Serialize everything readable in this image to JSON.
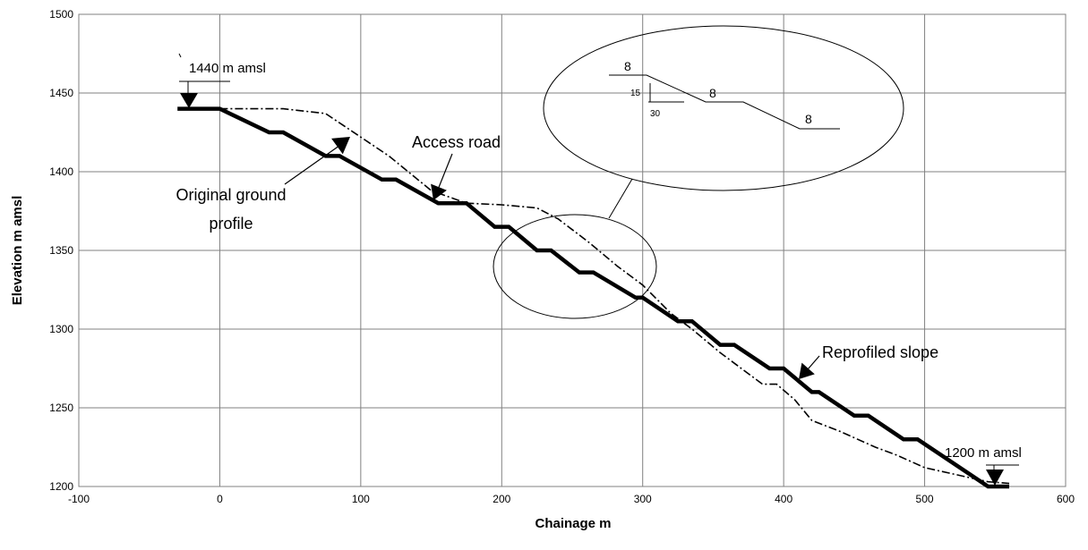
{
  "chart_data": {
    "type": "line",
    "title": "",
    "xlabel": "Chainage m",
    "ylabel": "Elevation m amsl",
    "xlim": [
      -100,
      600
    ],
    "ylim": [
      1200,
      1500
    ],
    "x_ticks": [
      -100,
      0,
      100,
      200,
      300,
      400,
      500,
      600
    ],
    "y_ticks": [
      1200,
      1250,
      1300,
      1350,
      1400,
      1450,
      1500
    ],
    "grid": true,
    "legend": "none",
    "series": [
      {
        "name": "",
        "style": "thick-solid",
        "color": "#000000",
        "points": [
          [
            -30,
            1440
          ],
          [
            0,
            1440
          ],
          [
            35,
            1425
          ],
          [
            45,
            1425
          ],
          [
            75,
            1410
          ],
          [
            85,
            1410
          ],
          [
            115,
            1395
          ],
          [
            125,
            1395
          ],
          [
            155,
            1380
          ],
          [
            175,
            1380
          ],
          [
            195,
            1365
          ],
          [
            205,
            1365
          ],
          [
            225,
            1350
          ],
          [
            235,
            1350
          ],
          [
            255,
            1336
          ],
          [
            265,
            1336
          ],
          [
            295,
            1320
          ],
          [
            300,
            1320
          ],
          [
            325,
            1305
          ],
          [
            335,
            1305
          ],
          [
            355,
            1290
          ],
          [
            365,
            1290
          ],
          [
            390,
            1275
          ],
          [
            400,
            1275
          ],
          [
            420,
            1260
          ],
          [
            425,
            1260
          ],
          [
            450,
            1245
          ],
          [
            460,
            1245
          ],
          [
            485,
            1230
          ],
          [
            495,
            1230
          ],
          [
            545,
            1200
          ],
          [
            560,
            1200
          ]
        ]
      },
      {
        "name": "",
        "style": "dash-dot",
        "color": "#000000",
        "points": [
          [
            0,
            1440
          ],
          [
            45,
            1440
          ],
          [
            75,
            1437
          ],
          [
            100,
            1422
          ],
          [
            120,
            1410
          ],
          [
            150,
            1388
          ],
          [
            175,
            1380
          ],
          [
            200,
            1379
          ],
          [
            225,
            1377
          ],
          [
            240,
            1370
          ],
          [
            262,
            1355
          ],
          [
            282,
            1340
          ],
          [
            300,
            1328
          ],
          [
            320,
            1310
          ],
          [
            335,
            1300
          ],
          [
            355,
            1285
          ],
          [
            385,
            1265
          ],
          [
            395,
            1265
          ],
          [
            408,
            1255
          ],
          [
            420,
            1242
          ],
          [
            440,
            1235
          ],
          [
            465,
            1225
          ],
          [
            480,
            1220
          ],
          [
            500,
            1212
          ],
          [
            520,
            1208
          ],
          [
            545,
            1203
          ],
          [
            560,
            1202
          ]
        ]
      }
    ],
    "annotations": [
      {
        "text": "1440 m amsl",
        "x": -20,
        "y": 1457
      },
      {
        "text": "Original ground profile",
        "lines": [
          "Original ground",
          "profile"
        ],
        "x": 55,
        "y": 1400
      },
      {
        "text": "Access road",
        "x": 170,
        "y": 1419
      },
      {
        "text": "Reprofiled slope",
        "x": 480,
        "y": 1270
      },
      {
        "text": "1200 m amsl",
        "x": 548,
        "y": 1209
      }
    ],
    "inset": {
      "circle_center": [
        250,
        1325
      ],
      "labels": [
        "8",
        "15",
        "30",
        "8",
        "8"
      ]
    }
  }
}
